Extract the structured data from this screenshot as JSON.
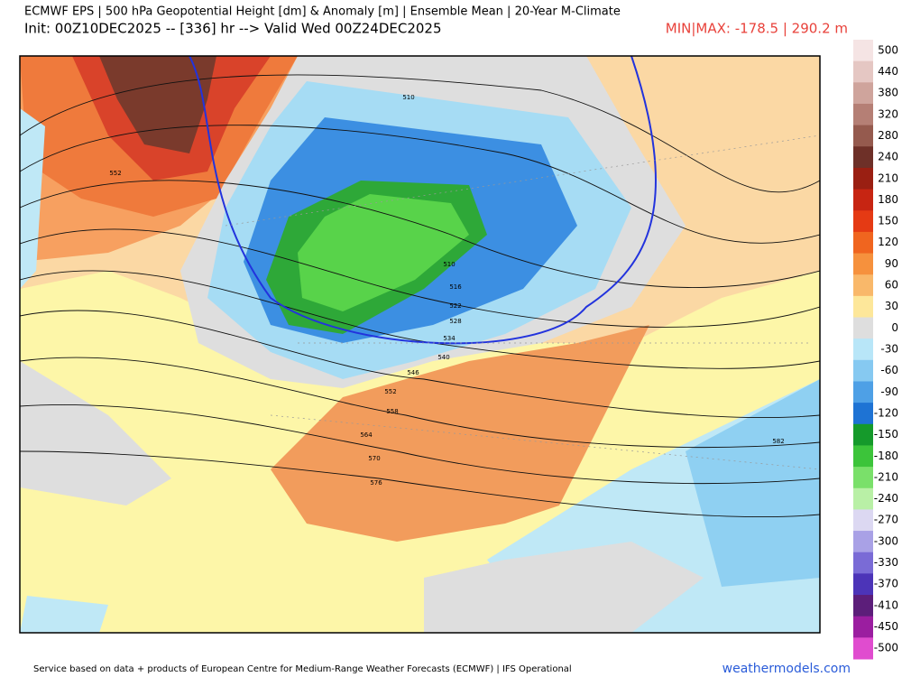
{
  "header": {
    "title": "ECMWF EPS | 500 hPa Geopotential Height [dm] & Anomaly [m] | Ensemble Mean | 20-Year M-Climate",
    "subtitle": "Init: 00Z10DEC2025 -- [336] hr --> Valid Wed 00Z24DEC2025",
    "minmax": "MIN|MAX: -178.5 | 290.2 m"
  },
  "contour_labels": [
    "510",
    "552",
    "510",
    "516",
    "522",
    "528",
    "534",
    "540",
    "546",
    "552",
    "558",
    "564",
    "570",
    "576",
    "582"
  ],
  "colorbar": {
    "labels": [
      "500",
      "440",
      "380",
      "320",
      "280",
      "240",
      "210",
      "180",
      "150",
      "120",
      "90",
      "60",
      "30",
      "0",
      "-30",
      "-60",
      "-90",
      "-120",
      "-150",
      "-180",
      "-210",
      "-240",
      "-270",
      "-300",
      "-330",
      "-370",
      "-410",
      "-450",
      "-500"
    ]
  },
  "footer": {
    "credit": "Service based on data + products of European Centre for Medium-Range Weather Forecasts (ECMWF) | IFS Operational",
    "site": "weathermodels.com"
  }
}
